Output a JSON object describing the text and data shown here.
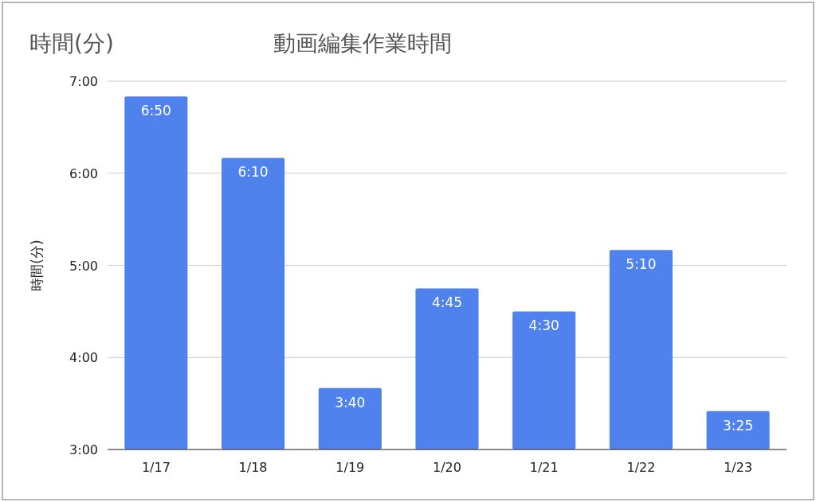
{
  "chart_data": {
    "type": "bar",
    "title": "動画編集作業時間",
    "ylabel": "時間(分)",
    "annotations": [
      "時間(分)"
    ],
    "categories": [
      "1/17",
      "1/18",
      "1/19",
      "1/20",
      "1/21",
      "1/22",
      "1/23"
    ],
    "values": [
      6.8333,
      6.1667,
      3.6667,
      4.75,
      4.5,
      5.1667,
      3.4167
    ],
    "value_labels": [
      "6:50",
      "6:10",
      "3:40",
      "4:45",
      "4:30",
      "5:10",
      "3:25"
    ],
    "color": "#4f82ec",
    "ylim": [
      3,
      7
    ],
    "yticks": [
      {
        "value": 3,
        "label": "3:00"
      },
      {
        "value": 4,
        "label": "4:00"
      },
      {
        "value": 5,
        "label": "5:00"
      },
      {
        "value": 6,
        "label": "6:00"
      },
      {
        "value": 7,
        "label": "7:00"
      }
    ],
    "grid": "y"
  }
}
